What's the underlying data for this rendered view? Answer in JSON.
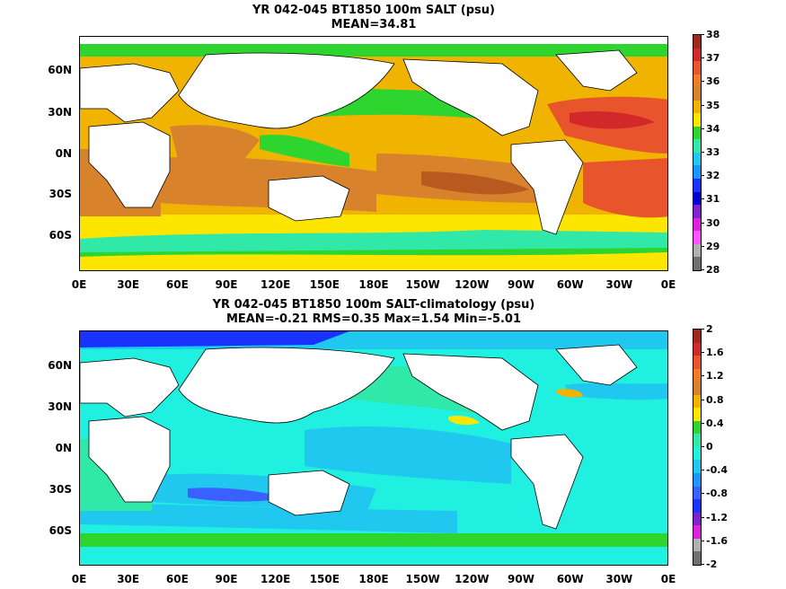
{
  "panel1": {
    "title_line1": "YR 042-045 BT1850 100m SALT (psu)",
    "title_line2": "MEAN=34.81",
    "colorbar_labels": [
      "38",
      "37",
      "36",
      "35",
      "34",
      "33",
      "32",
      "31",
      "30",
      "29",
      "28"
    ],
    "colors": [
      "#a0281e",
      "#d2282a",
      "#e8552c",
      "#f07c28",
      "#d9822c",
      "#f0b400",
      "#fce600",
      "#2ed52e",
      "#30e8a8",
      "#20c8f0",
      "#1a96ff",
      "#1a32ff",
      "#0000d0",
      "#8020d0",
      "#e020e0",
      "#ff50ff",
      "#b0b0b0",
      "#707070"
    ]
  },
  "panel2": {
    "title_line1": "YR 042-045 BT1850 100m SALT-climatology (psu)",
    "title_line2": "MEAN=-0.21   RMS=0.35   Max=1.54   Min=-5.01",
    "colorbar_labels": [
      "2",
      "1.6",
      "1.2",
      "0.8",
      "0.4",
      "0",
      "-0.4",
      "-0.8",
      "-1.2",
      "-1.6",
      "-2"
    ],
    "colors": [
      "#a0281e",
      "#d2282a",
      "#e8552c",
      "#f07c28",
      "#d9822c",
      "#f0b400",
      "#fce600",
      "#2ed52e",
      "#30e8a8",
      "#20f0e0",
      "#20c8f0",
      "#1a96ff",
      "#3a60ff",
      "#1a32ff",
      "#8020d0",
      "#e020e0",
      "#b0b0b0",
      "#707070"
    ]
  },
  "axes": {
    "x_labels": [
      "0E",
      "30E",
      "60E",
      "90E",
      "120E",
      "150E",
      "180E",
      "150W",
      "120W",
      "90W",
      "60W",
      "30W",
      "0E"
    ],
    "y_labels": [
      "60N",
      "30N",
      "0N",
      "30S",
      "60S"
    ]
  }
}
